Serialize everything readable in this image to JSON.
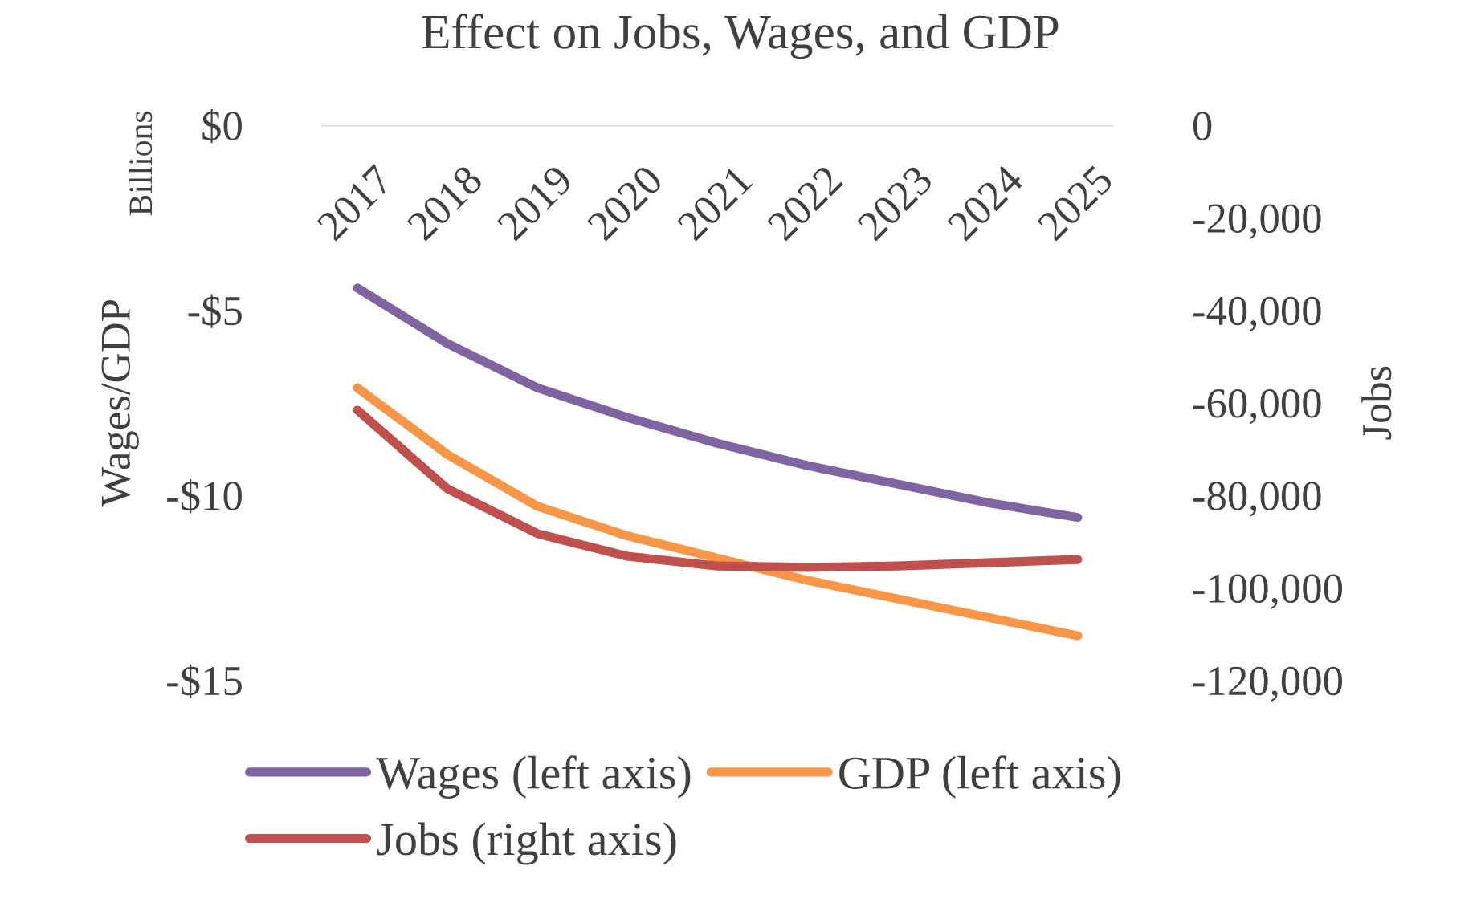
{
  "chart_data": {
    "type": "line",
    "title": "Effect on Jobs, Wages, and GDP",
    "categories": [
      "2017",
      "2018",
      "2019",
      "2020",
      "2021",
      "2022",
      "2023",
      "2024",
      "2025"
    ],
    "series": [
      {
        "name": "Wages (left axis)",
        "color": "#8064a2",
        "values": [
          -4.4,
          -5.9,
          -7.1,
          -7.9,
          -8.6,
          -9.2,
          -9.7,
          -10.2,
          -10.6
        ]
      },
      {
        "name": "GDP (left axis)",
        "color": "#f79646",
        "values": [
          -7.1,
          -8.9,
          -10.3,
          -11.1,
          -11.7,
          -12.3,
          -12.8,
          -13.3,
          -13.8
        ]
      },
      {
        "name": "Jobs (right axis)",
        "color": "#c0504d",
        "axis": "y2",
        "values": [
          -61600,
          -78600,
          -88300,
          -93200,
          -95300,
          -95600,
          -95300,
          -94600,
          -93900
        ]
      }
    ],
    "ylabel": "Wages/GDP",
    "y2label": "Jobs",
    "ylim": [
      -15,
      0
    ],
    "yticks": [
      {
        "value": -15,
        "label": "-$15"
      },
      {
        "value": -10,
        "label": "-$10"
      },
      {
        "value": -5,
        "label": "-$5"
      },
      {
        "value": 0,
        "label": "$0"
      }
    ],
    "y2lim": [
      -120000,
      0
    ],
    "y2ticks": [
      {
        "value": -120000,
        "label": "-120,000"
      },
      {
        "value": -100000,
        "label": "-100,000"
      },
      {
        "value": -80000,
        "label": "-80,000"
      },
      {
        "value": -60000,
        "label": "-60,000"
      },
      {
        "value": -40000,
        "label": "-40,000"
      },
      {
        "value": -20000,
        "label": "-20,000"
      },
      0
    ],
    "annotations": [
      "Billions"
    ],
    "legend": "bottom",
    "grid": false,
    "line_style": "solid",
    "marker": "none"
  }
}
